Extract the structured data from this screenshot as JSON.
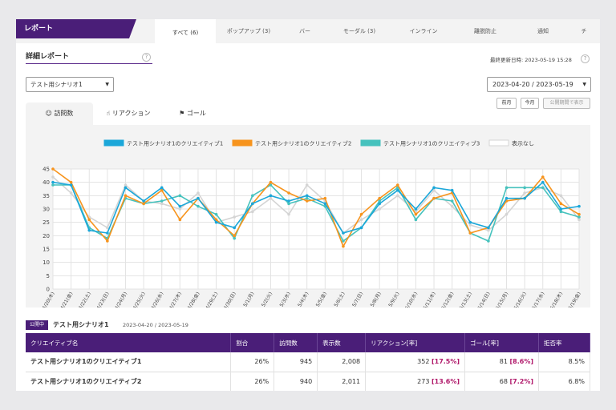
{
  "header": {
    "brand": "レポート"
  },
  "tabs": [
    "すべて (6)",
    "ポップアップ (3)",
    "バー",
    "モーダル (3)",
    "インライン",
    "離脱防止",
    "通知",
    "チ"
  ],
  "section": {
    "title": "詳細レポート",
    "help": "?",
    "updated": "最終更新日時: 2023-05-19 15:28"
  },
  "scenario_select": {
    "value": "テスト用シナリオ1",
    "caret": "▼"
  },
  "date_range": {
    "value": "2023-04-20 / 2023-05-19",
    "caret": "▼"
  },
  "buttons": {
    "prev_month": "前月",
    "this_month": "今月",
    "publish_period": "公開期間で表示"
  },
  "subtabs": [
    {
      "icon": "☺",
      "label": "訪問数"
    },
    {
      "icon": "☝",
      "label": "リアクション"
    },
    {
      "icon": "⚑",
      "label": "ゴール"
    }
  ],
  "chart_data": {
    "type": "line",
    "x": [
      "4/20(木)",
      "4/21(金)",
      "4/22(土)",
      "4/23(日)",
      "4/24(月)",
      "4/25(火)",
      "4/26(水)",
      "4/27(木)",
      "4/28(金)",
      "4/29(土)",
      "4/30(日)",
      "5/1(月)",
      "5/2(火)",
      "5/3(水)",
      "5/4(木)",
      "5/5(金)",
      "5/6(土)",
      "5/7(日)",
      "5/8(月)",
      "5/9(火)",
      "5/10(水)",
      "5/11(木)",
      "5/12(金)",
      "5/13(土)",
      "5/14(日)",
      "5/15(月)",
      "5/16(火)",
      "5/17(水)",
      "5/18(木)",
      "5/19(金)"
    ],
    "ylim": [
      0,
      45
    ],
    "yticks": [
      0,
      5,
      10,
      15,
      20,
      25,
      30,
      35,
      40,
      45
    ],
    "grid": true,
    "legend": "top",
    "series": [
      {
        "name": "テスト用シナリオ1のクリエイティブ1",
        "color": "#1ba7d9",
        "values": [
          40,
          39,
          22,
          21,
          38,
          33,
          38,
          31,
          34,
          25,
          23,
          32,
          35,
          33,
          35,
          32,
          21,
          23,
          32,
          37,
          30,
          38,
          37,
          25,
          23,
          34,
          34,
          40,
          30,
          31
        ]
      },
      {
        "name": "テスト用シナリオ1のクリエイティブ2",
        "color": "#f7941d",
        "values": [
          45,
          40,
          26,
          18,
          35,
          32,
          37,
          26,
          34,
          26,
          20,
          32,
          40,
          36,
          33,
          34,
          16,
          28,
          34,
          39,
          28,
          34,
          36,
          21,
          23,
          33,
          34,
          42,
          32,
          28
        ]
      },
      {
        "name": "テスト用シナリオ1のクリエイティブ3",
        "color": "#46c2bd",
        "values": [
          39,
          39,
          23,
          19,
          34,
          32,
          33,
          35,
          31,
          28,
          19,
          35,
          39,
          32,
          34,
          31,
          18,
          23,
          33,
          38,
          26,
          34,
          33,
          21,
          18,
          38,
          38,
          38,
          29,
          27
        ]
      },
      {
        "name": "表示なし",
        "color": "#d4d4d4",
        "values": [
          42,
          36,
          27,
          23,
          39,
          33,
          32,
          30,
          36,
          25,
          27,
          29,
          34,
          28,
          39,
          33,
          21,
          26,
          30,
          35,
          29,
          37,
          31,
          24,
          22,
          28,
          36,
          38,
          35,
          26
        ]
      }
    ]
  },
  "published": {
    "badge": "公開中",
    "name": "テスト用シナリオ1",
    "dates": "2023-04-20 / 2023-05-19"
  },
  "table": {
    "headers": [
      "クリエイティブ名",
      "割合",
      "訪問数",
      "表示数",
      "リアクション[率]",
      "ゴール[率]",
      "拒否率"
    ],
    "rows": [
      {
        "name": "テスト用シナリオ1のクリエイティブ1",
        "ratio": "26%",
        "visits": "945",
        "views": "2,008",
        "reactions": "352",
        "reaction_rate": "[17.5%]",
        "goals": "81",
        "goal_rate": "[8.6%]",
        "reject": "8.5%"
      },
      {
        "name": "テスト用シナリオ1のクリエイティブ2",
        "ratio": "26%",
        "visits": "940",
        "views": "2,011",
        "reactions": "273",
        "reaction_rate": "[13.6%]",
        "goals": "68",
        "goal_rate": "[7.2%]",
        "reject": "6.8%"
      }
    ]
  }
}
